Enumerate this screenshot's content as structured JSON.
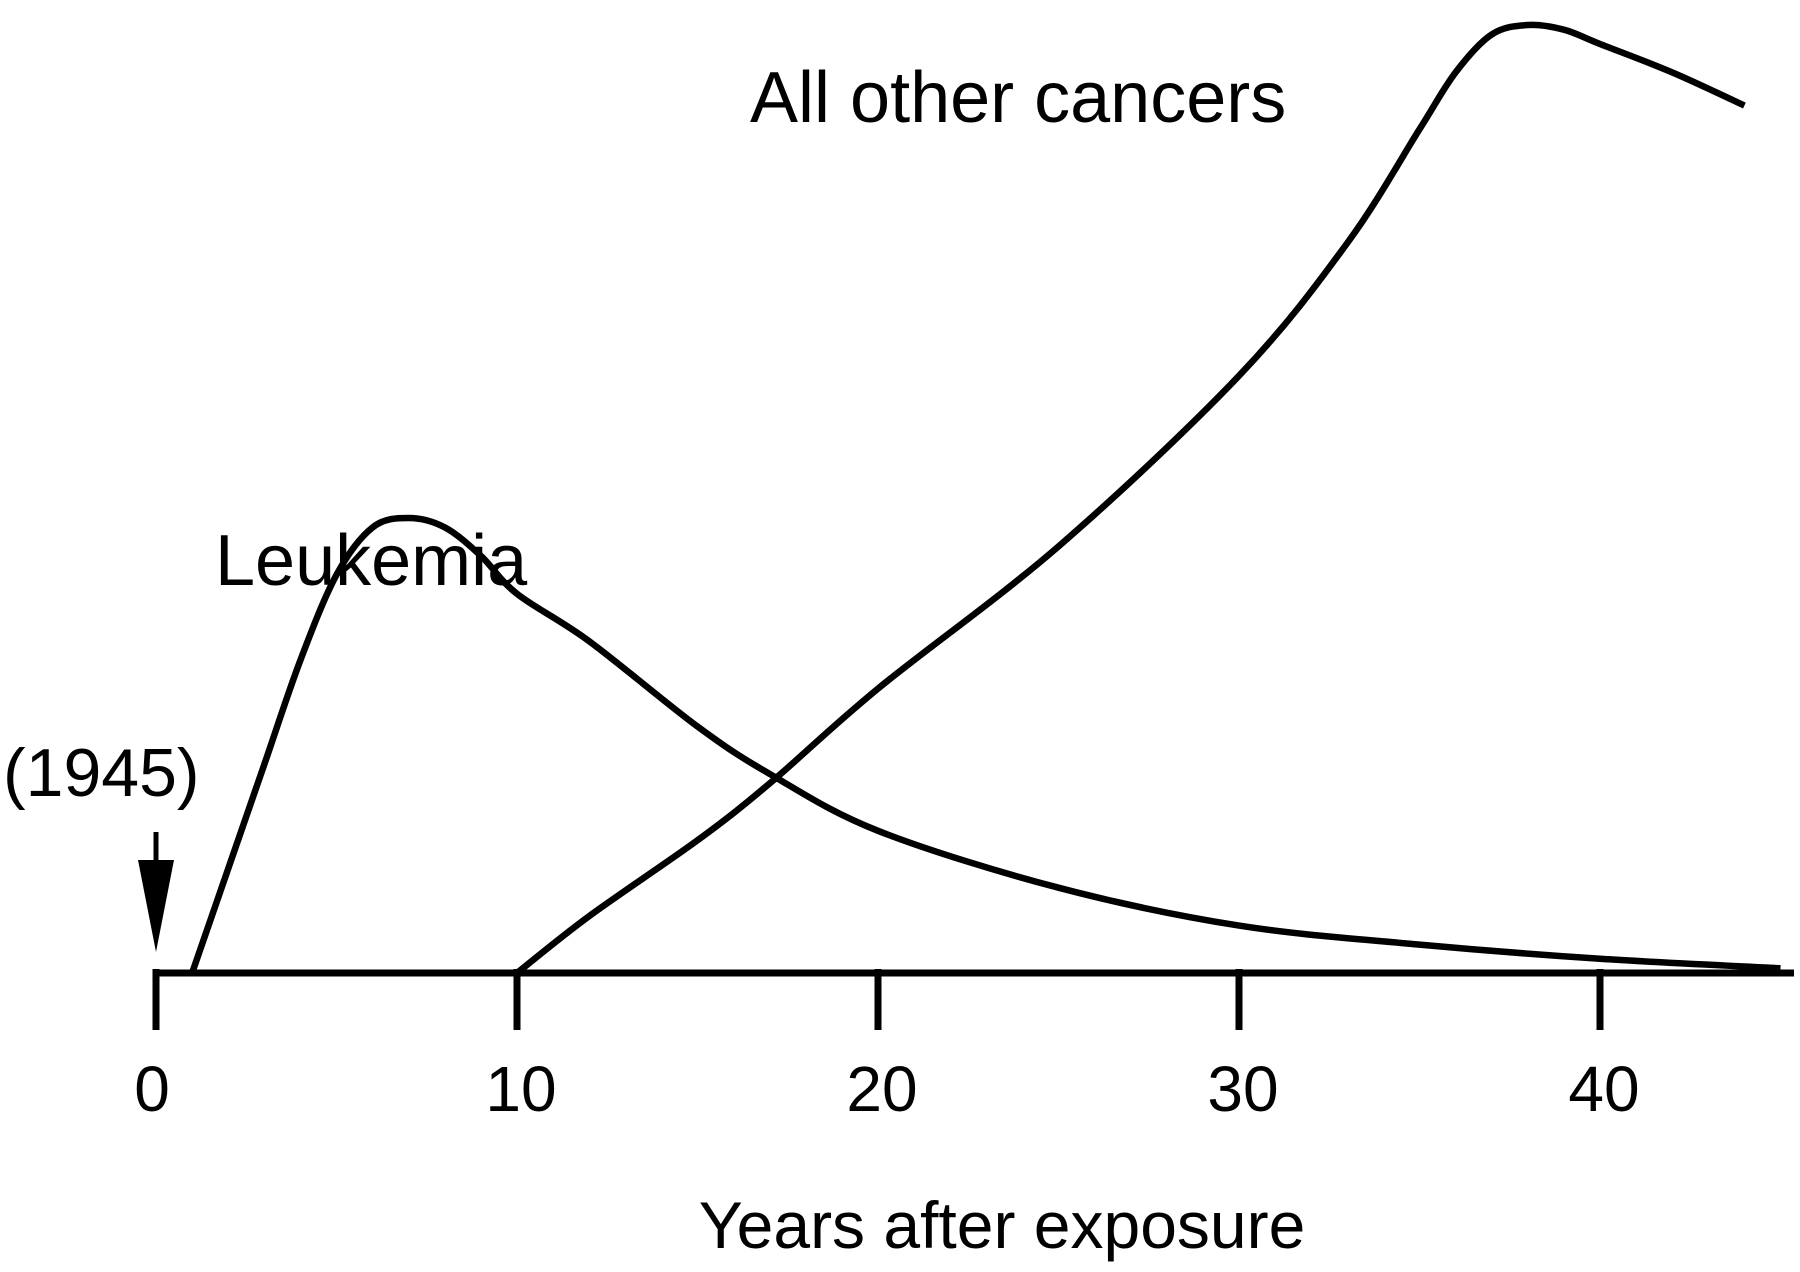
{
  "chart_data": {
    "type": "line",
    "xlabel": "Years after exposure",
    "ylabel": "",
    "x_ticks": [
      "0",
      "10",
      "20",
      "30",
      "40"
    ],
    "xlim": [
      0,
      45
    ],
    "ylim": [
      0,
      100
    ],
    "grid": false,
    "legend": "none",
    "y_axis_shown": false,
    "series": [
      {
        "name": "Leukemia",
        "x": [
          1,
          2,
          3,
          4,
          5,
          6,
          7,
          8,
          9,
          10,
          12,
          15,
          17,
          20,
          25,
          30,
          35,
          40,
          45
        ],
        "y": [
          0,
          11,
          22,
          33,
          42,
          47,
          48,
          47,
          44,
          40,
          35,
          26,
          21,
          15,
          9,
          5,
          3,
          1.5,
          0.5
        ]
      },
      {
        "name": "All other cancers",
        "x": [
          10,
          12,
          15,
          17,
          20,
          25,
          30,
          33,
          35,
          36,
          37,
          38,
          39,
          40,
          42,
          44
        ],
        "y": [
          0,
          6,
          14,
          20,
          30,
          45,
          63,
          77,
          89,
          95,
          99,
          100,
          99.5,
          98,
          95,
          91.5
        ]
      }
    ],
    "annotations": [
      {
        "text": "(1945)",
        "x": 0,
        "marker": "down-arrow"
      }
    ]
  }
}
